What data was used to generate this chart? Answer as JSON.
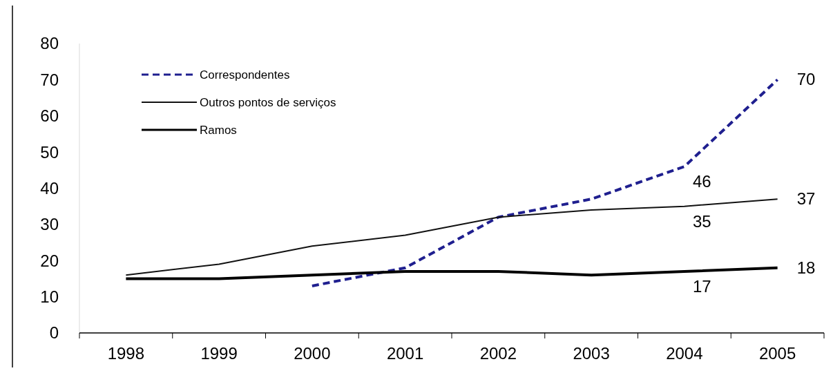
{
  "chart_data": {
    "type": "line",
    "categories": [
      "1998",
      "1999",
      "2000",
      "2001",
      "2002",
      "2003",
      "2004",
      "2005"
    ],
    "ylim": [
      0,
      80
    ],
    "yticks": [
      0,
      10,
      20,
      30,
      40,
      50,
      60,
      70,
      80
    ],
    "legend": "top left",
    "grid": false,
    "series": [
      {
        "name": "Correspondentes",
        "color": "#1f1f8f",
        "line_style": "dashed",
        "values": [
          null,
          null,
          13,
          18,
          32,
          37,
          46,
          70
        ],
        "value_labels": [
          null,
          null,
          null,
          null,
          null,
          null,
          "46",
          "70"
        ]
      },
      {
        "name": "Outros pontos de serviços",
        "color": "#111111",
        "line_style": "solid",
        "values": [
          16,
          19,
          24,
          27,
          32,
          34,
          35,
          37
        ],
        "value_labels": [
          null,
          null,
          null,
          null,
          null,
          null,
          "35",
          "37"
        ]
      },
      {
        "name": "Ramos",
        "color": "#000000",
        "line_style": "solid",
        "values": [
          15,
          15,
          16,
          17,
          17,
          16,
          17,
          18
        ],
        "value_labels": [
          null,
          null,
          null,
          null,
          null,
          null,
          "17",
          "18"
        ]
      }
    ]
  }
}
